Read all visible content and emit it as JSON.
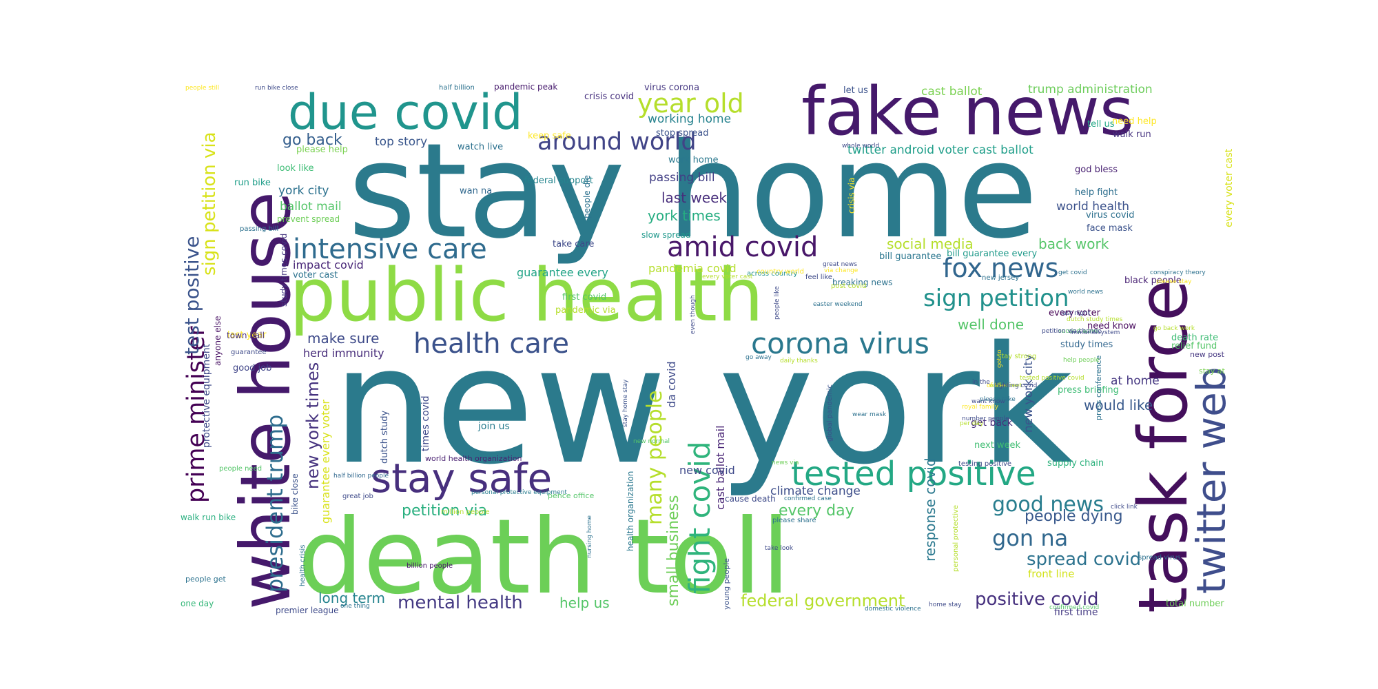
{
  "words": [
    {
      "text": "new york",
      "color": "#2b7a8c"
    },
    {
      "text": "stay home",
      "color": "#2b7a8c"
    },
    {
      "text": "death toll",
      "color": "#6ccf57"
    },
    {
      "text": "public health",
      "color": "#8edb45"
    },
    {
      "text": "white house",
      "color": "#45196b"
    },
    {
      "text": "task force",
      "color": "#440f5c"
    },
    {
      "text": "fake news",
      "color": "#45196b"
    },
    {
      "text": "due covid",
      "color": "#20958d"
    },
    {
      "text": "twitter web",
      "color": "#3f4e8c"
    },
    {
      "text": "stay safe",
      "color": "#472f7d"
    },
    {
      "text": "tested positive",
      "color": "#23a884"
    },
    {
      "text": "intensive care",
      "color": "#2f6b8e"
    },
    {
      "text": "corona virus",
      "color": "#2a788e"
    },
    {
      "text": "fight covid",
      "color": "#2fb47c"
    },
    {
      "text": "health care",
      "color": "#3b528b"
    },
    {
      "text": "amid covid",
      "color": "#481769"
    },
    {
      "text": "year old",
      "color": "#b5de2b"
    },
    {
      "text": "fox news",
      "color": "#31668e"
    },
    {
      "text": "around world",
      "color": "#414487"
    },
    {
      "text": "prime minister",
      "color": "#440154"
    },
    {
      "text": "sign petition",
      "color": "#21918c"
    },
    {
      "text": "president trump",
      "color": "#2e6d8e"
    },
    {
      "text": "gon na",
      "color": "#31688e"
    },
    {
      "text": "good news",
      "color": "#287d8e"
    },
    {
      "text": "many people",
      "color": "#b5de2b"
    },
    {
      "text": "test positive",
      "color": "#3a538b"
    },
    {
      "text": "sign petition via",
      "color": "#d8e219"
    },
    {
      "text": "positive covid",
      "color": "#46307e"
    },
    {
      "text": "mental health",
      "color": "#443983"
    },
    {
      "text": "federal government",
      "color": "#b5de2b"
    },
    {
      "text": "new york times",
      "color": "#46337f"
    },
    {
      "text": "spread covid",
      "color": "#2c728e"
    },
    {
      "text": "people dying",
      "color": "#38588c"
    },
    {
      "text": "petition via",
      "color": "#29af7f"
    },
    {
      "text": "every day",
      "color": "#54c568"
    },
    {
      "text": "small business",
      "color": "#6ece58"
    },
    {
      "text": "social media",
      "color": "#b5de2b"
    },
    {
      "text": "back work",
      "color": "#54c568"
    },
    {
      "text": "response covid",
      "color": "#2a788e"
    },
    {
      "text": "last week",
      "color": "#472d7b"
    },
    {
      "text": "york times",
      "color": "#26ad81"
    },
    {
      "text": "go back",
      "color": "#355f8d"
    },
    {
      "text": "well done",
      "color": "#54c568"
    },
    {
      "text": "would like",
      "color": "#38598c"
    },
    {
      "text": "make sure",
      "color": "#3e4a89"
    },
    {
      "text": "help us",
      "color": "#54c568"
    },
    {
      "text": "long term",
      "color": "#25838e"
    },
    {
      "text": "ballot mail",
      "color": "#54c568"
    },
    {
      "text": "york city",
      "color": "#2c718e"
    },
    {
      "text": "top story",
      "color": "#39568c"
    },
    {
      "text": "guarantee every voter",
      "color": "#d8e219"
    },
    {
      "text": "twitter android voter cast ballot",
      "color": "#1f9e89"
    },
    {
      "text": "climate change",
      "color": "#3d4e8a"
    },
    {
      "text": "world health",
      "color": "#3b518b"
    },
    {
      "text": "new york city",
      "color": "#3b528b"
    },
    {
      "text": "herd immunity",
      "color": "#472c7a"
    },
    {
      "text": "cast ballot mail",
      "color": "#482475"
    },
    {
      "text": "trump administration",
      "color": "#6ccd5a"
    },
    {
      "text": "cast ballot",
      "color": "#7ad151"
    },
    {
      "text": "passing bill",
      "color": "#423f85"
    },
    {
      "text": "working home",
      "color": "#26828e"
    },
    {
      "text": "at home",
      "color": "#453781"
    },
    {
      "text": "new covid",
      "color": "#3e4989"
    },
    {
      "text": "guarantee every",
      "color": "#20a386"
    },
    {
      "text": "pandemia covid",
      "color": "#b5de2b"
    },
    {
      "text": "impact covid",
      "color": "#482677"
    },
    {
      "text": "da covid",
      "color": "#3e4a89"
    },
    {
      "text": "every voter cast",
      "color": "#d8e219"
    },
    {
      "text": "front line",
      "color": "#d2e21b"
    },
    {
      "text": "first time",
      "color": "#443a83"
    },
    {
      "text": "people get",
      "color": "#2c728e"
    },
    {
      "text": "one day",
      "color": "#35b779"
    },
    {
      "text": "walk run bike",
      "color": "#29af7f"
    },
    {
      "text": "good job",
      "color": "#404588"
    },
    {
      "text": "last year",
      "color": "#fde725"
    },
    {
      "text": "protective equipment",
      "color": "#3e4a89"
    },
    {
      "text": "study times covid",
      "color": "#453781"
    },
    {
      "text": "dutch study",
      "color": "#3b528b"
    },
    {
      "text": "times covid",
      "color": "#3e4989"
    },
    {
      "text": "join us",
      "color": "#287c8e"
    },
    {
      "text": "world health organization",
      "color": "#481f70"
    },
    {
      "text": "health organization",
      "color": "#2a778e"
    },
    {
      "text": "get back",
      "color": "#472c7a"
    },
    {
      "text": "next week",
      "color": "#40bd72"
    },
    {
      "text": "press briefing",
      "color": "#3dbc74"
    },
    {
      "text": "supply chain",
      "color": "#2db27d"
    },
    {
      "text": "study times",
      "color": "#31668e"
    },
    {
      "text": "need know",
      "color": "#46085c"
    },
    {
      "text": "every voter",
      "color": "#440154"
    },
    {
      "text": "black people",
      "color": "#482173"
    },
    {
      "text": "death rate",
      "color": "#3dbc74"
    },
    {
      "text": "relief fund",
      "color": "#54c568"
    },
    {
      "text": "new post",
      "color": "#453781"
    },
    {
      "text": "stay at",
      "color": "#7ad151"
    },
    {
      "text": "bill guarantee",
      "color": "#2a768e"
    },
    {
      "text": "bill guarantee every",
      "color": "#1f9a8a"
    },
    {
      "text": "face mask",
      "color": "#3b528b"
    },
    {
      "text": "virus covid",
      "color": "#2d708e"
    },
    {
      "text": "help fight",
      "color": "#2e6f8e"
    },
    {
      "text": "god bless",
      "color": "#482071"
    },
    {
      "text": "walk run",
      "color": "#46337f"
    },
    {
      "text": "tell us",
      "color": "#22a785"
    },
    {
      "text": "need help",
      "color": "#fde725"
    },
    {
      "text": "let us",
      "color": "#3b528b"
    },
    {
      "text": "crisis covid",
      "color": "#46307e"
    },
    {
      "text": "virus corona",
      "color": "#453781"
    },
    {
      "text": "pandemic peak",
      "color": "#481c6e"
    },
    {
      "text": "half billion",
      "color": "#2c728e"
    },
    {
      "text": "people still",
      "color": "#fde725"
    },
    {
      "text": "run bike close",
      "color": "#3e4a89"
    },
    {
      "text": "stop spread",
      "color": "#3b528b"
    },
    {
      "text": "keep safe",
      "color": "#fde725"
    },
    {
      "text": "please help",
      "color": "#7ad151"
    },
    {
      "text": "watch live",
      "color": "#2c718e"
    },
    {
      "text": "look like",
      "color": "#3dbc74"
    },
    {
      "text": "run bike",
      "color": "#1f9e89"
    },
    {
      "text": "federal support",
      "color": "#25858e"
    },
    {
      "text": "wan na",
      "color": "#31688e"
    },
    {
      "text": "work home",
      "color": "#2a788e"
    },
    {
      "text": "people die",
      "color": "#2c718e"
    },
    {
      "text": "take care",
      "color": "#3e4989"
    },
    {
      "text": "slow spread",
      "color": "#1f988b"
    },
    {
      "text": "first covid",
      "color": "#54c568"
    },
    {
      "text": "pandemic via",
      "color": "#b5de2b"
    },
    {
      "text": "voter cast",
      "color": "#2c728e"
    },
    {
      "text": "prevent spread",
      "color": "#6ece58"
    },
    {
      "text": "anyone else",
      "color": "#471063"
    },
    {
      "text": "town hall",
      "color": "#472f7d"
    },
    {
      "text": "guarantee",
      "color": "#3e4a89"
    },
    {
      "text": "passing bill",
      "color": "#2c718e"
    },
    {
      "text": "bike close",
      "color": "#3b528b"
    },
    {
      "text": "health crisis",
      "color": "#2c728e"
    },
    {
      "text": "premier league",
      "color": "#3e4a89"
    },
    {
      "text": "one thing",
      "color": "#2c718e"
    },
    {
      "text": "people need",
      "color": "#54c568"
    },
    {
      "text": "half billion people",
      "color": "#31688e"
    },
    {
      "text": "great job",
      "color": "#3e4a89"
    },
    {
      "text": "personal protective equipment",
      "color": "#287c8e"
    },
    {
      "text": "pence office",
      "color": "#54c568"
    },
    {
      "text": "million people",
      "color": "#b5de2b"
    },
    {
      "text": "billion people",
      "color": "#481769"
    },
    {
      "text": "young people",
      "color": "#3b528b"
    },
    {
      "text": "nursing home",
      "color": "#2c718e"
    },
    {
      "text": "stay home stay",
      "color": "#3b528b"
    },
    {
      "text": "new normal",
      "color": "#54c568"
    },
    {
      "text": "news via",
      "color": "#6ece58"
    },
    {
      "text": "global pandemic",
      "color": "#3b528b"
    },
    {
      "text": "wear mask",
      "color": "#2c718e"
    },
    {
      "text": "cause death",
      "color": "#3e4a89"
    },
    {
      "text": "confirmed case",
      "color": "#2c718e"
    },
    {
      "text": "please share",
      "color": "#2c718e"
    },
    {
      "text": "take look",
      "color": "#3e4a89"
    },
    {
      "text": "domestic violence",
      "color": "#2c718e"
    },
    {
      "text": "home stay",
      "color": "#3e4a89"
    },
    {
      "text": "confirmed covid",
      "color": "#54c568"
    },
    {
      "text": "total number",
      "color": "#6ece58"
    },
    {
      "text": "spread virus",
      "color": "#2c718e"
    },
    {
      "text": "click link",
      "color": "#3e4a89"
    },
    {
      "text": "personal protective",
      "color": "#b5de2b"
    },
    {
      "text": "press conference",
      "color": "#2c718e"
    },
    {
      "text": "testing positive",
      "color": "#3e4a89"
    },
    {
      "text": "per day",
      "color": "#b5de2b"
    },
    {
      "text": "number people",
      "color": "#3e4a89"
    },
    {
      "text": "royal family",
      "color": "#fde725"
    },
    {
      "text": "want know",
      "color": "#3e4a89"
    },
    {
      "text": "please take",
      "color": "#2c718e"
    },
    {
      "text": "in the",
      "color": "#3e4a89"
    },
    {
      "text": "wall street",
      "color": "#b5de2b"
    },
    {
      "text": "of the",
      "color": "#fde725"
    },
    {
      "text": "fighting covid",
      "color": "#3e4a89"
    },
    {
      "text": "tested positive covid",
      "color": "#b5de2b"
    },
    {
      "text": "got to",
      "color": "#fde725"
    },
    {
      "text": "stay strong",
      "color": "#b5de2b"
    },
    {
      "text": "new jersey",
      "color": "#2c718e"
    },
    {
      "text": "second wave",
      "color": "#54c568"
    },
    {
      "text": "help people",
      "color": "#6ece58"
    },
    {
      "text": "last night",
      "color": "#3e4a89"
    },
    {
      "text": "go away",
      "color": "#2c718e"
    },
    {
      "text": "daily thanks",
      "color": "#b5de2b"
    },
    {
      "text": "petition via change",
      "color": "#3e4a89"
    },
    {
      "text": "world news",
      "color": "#2c718e"
    },
    {
      "text": "immune system",
      "color": "#3e4a89"
    },
    {
      "text": "dutch study times",
      "color": "#b5de2b"
    },
    {
      "text": "get covid",
      "color": "#2c718e"
    },
    {
      "text": "go back work",
      "color": "#b5de2b"
    },
    {
      "text": "conspiracy theory",
      "color": "#2c718e"
    },
    {
      "text": "please stay",
      "color": "#fde725"
    },
    {
      "text": "people like",
      "color": "#3e4a89"
    },
    {
      "text": "easter weekend",
      "color": "#2c718e"
    },
    {
      "text": "great news",
      "color": "#3e4a89"
    },
    {
      "text": "across country",
      "color": "#21918c"
    },
    {
      "text": "every voter cast",
      "color": "#b5de2b"
    },
    {
      "text": "even though",
      "color": "#3e4a89"
    },
    {
      "text": "country world",
      "color": "#fde725"
    },
    {
      "text": "via change",
      "color": "#fde725"
    },
    {
      "text": "feel like",
      "color": "#3e4a89"
    },
    {
      "text": "breaking news",
      "color": "#2c718e"
    },
    {
      "text": "crisis via",
      "color": "#fde725"
    },
    {
      "text": "post covid",
      "color": "#b5de2b"
    },
    {
      "text": "whole world",
      "color": "#3e4a89"
    }
  ]
}
